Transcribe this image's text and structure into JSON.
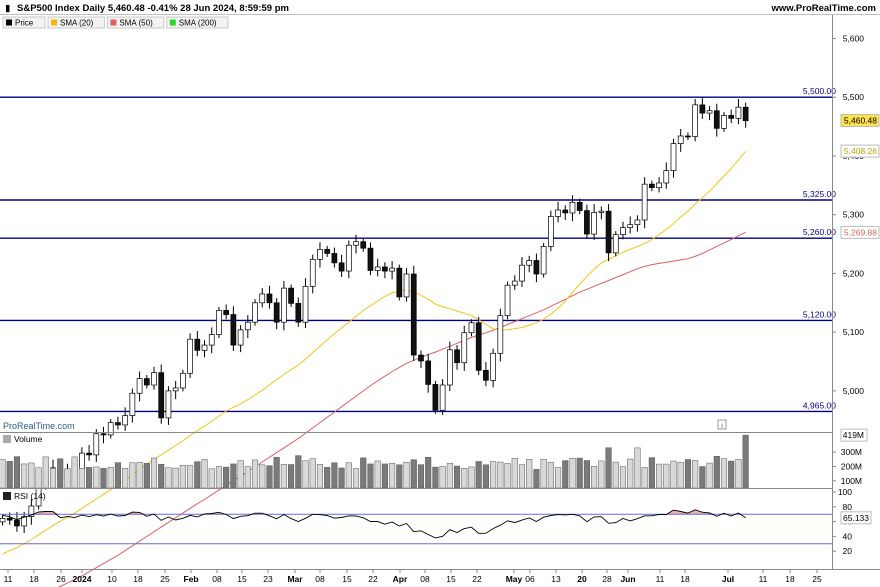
{
  "header": {
    "title": "S&P500 Index Daily 5,460.48 -0.41% 28 Jun 2024, 8:59:59 pm",
    "site": "www.ProRealTime.com"
  },
  "legend": [
    {
      "name": "Price",
      "color": "#000000"
    },
    {
      "name": "SMA (20)",
      "color": "#f5b800"
    },
    {
      "name": "SMA (50)",
      "color": "#e06060"
    },
    {
      "name": "SMA (200)",
      "color": "#2bd62b"
    }
  ],
  "watermark": "ProRealTime.com",
  "colors": {
    "hline": "#00008b",
    "sma20": "#f5c518",
    "sma50": "#e06060",
    "rsi_line": "#000000",
    "rsi_level": "#6a6ad8"
  },
  "chart_data": [
    {
      "type": "candlestick",
      "title": "S&P500 Index Daily",
      "y_ticks": [
        "5,000",
        "5,100",
        "5,200",
        "5,300",
        "5,400",
        "5,500",
        "5,600"
      ],
      "ylim": [
        4930,
        5640
      ],
      "last_price": "5,460.48",
      "sma20_label": "5,408.26",
      "sma50_label": "5,269.88",
      "horizontal_lines": [
        {
          "value": 5500,
          "label": "5,500.00"
        },
        {
          "value": 5325,
          "label": "5,325.00"
        },
        {
          "value": 5260,
          "label": "5,260.00"
        },
        {
          "value": 5120,
          "label": "5,120.00"
        },
        {
          "value": 4965,
          "label": "4,965.00"
        }
      ],
      "x_labels": [
        "11",
        "18",
        "26",
        "2024",
        "10",
        "18",
        "25",
        "Feb",
        "08",
        "15",
        "23",
        "Mar",
        "08",
        "15",
        "22",
        "Apr",
        "08",
        "15",
        "22",
        "May",
        "06",
        "13",
        "20",
        "28",
        "Jun",
        "11",
        "18",
        "Jul",
        "11",
        "18",
        "25"
      ],
      "closes": [
        4783,
        4780,
        4770,
        4786,
        4804,
        4840,
        4851,
        4869,
        4850,
        4864,
        4868,
        4894,
        4891,
        4927,
        4925,
        4946,
        4942,
        4958,
        4996,
        5021,
        5010,
        5031,
        4954,
        5000,
        5005,
        5030,
        5088,
        5069,
        5078,
        5096,
        5137,
        5130,
        5078,
        5104,
        5117,
        5150,
        5165,
        5150,
        5117,
        5175,
        5149,
        5117,
        5178,
        5224,
        5241,
        5234,
        5218,
        5204,
        5248,
        5254,
        5243,
        5205,
        5211,
        5204,
        5209,
        5160,
        5199,
        5061,
        5051,
        5011,
        4967,
        5010,
        5070,
        5048,
        5099,
        5116,
        5035,
        5018,
        5064,
        5128,
        5180,
        5187,
        5214,
        5222,
        5199,
        5246,
        5297,
        5308,
        5303,
        5321,
        5307,
        5267,
        5304,
        5306,
        5235,
        5266,
        5278,
        5283,
        5291,
        5352,
        5346,
        5354,
        5375,
        5421,
        5434,
        5433,
        5487,
        5473,
        5477,
        5447,
        5469,
        5464,
        5483,
        5460
      ],
      "sma20": [
        4722,
        4728,
        4733,
        4740,
        4747,
        4755,
        4763,
        4771,
        4778,
        4785,
        4792,
        4800,
        4808,
        4816,
        4824,
        4832,
        4840,
        4848,
        4857,
        4866,
        4875,
        4884,
        4891,
        4899,
        4907,
        4915,
        4924,
        4932,
        4940,
        4948,
        4957,
        4966,
        4972,
        4978,
        4985,
        4993,
        5001,
        5010,
        5019,
        5028,
        5036,
        5044,
        5054,
        5065,
        5076,
        5087,
        5097,
        5107,
        5117,
        5127,
        5137,
        5145,
        5153,
        5161,
        5167,
        5170,
        5172,
        5168,
        5163,
        5156,
        5148,
        5143,
        5140,
        5136,
        5132,
        5128,
        5121,
        5113,
        5106,
        5103,
        5104,
        5106,
        5108,
        5112,
        5116,
        5122,
        5130,
        5141,
        5153,
        5168,
        5182,
        5195,
        5207,
        5218,
        5224,
        5230,
        5236,
        5241,
        5246,
        5251,
        5258,
        5266,
        5275,
        5285,
        5296,
        5306,
        5318,
        5329,
        5340,
        5353,
        5366,
        5379,
        5393,
        5408
      ],
      "sma50": [
        4620,
        4626,
        4632,
        4637,
        4643,
        4649,
        4655,
        4661,
        4667,
        4673,
        4679,
        4685,
        4692,
        4699,
        4706,
        4713,
        4720,
        4728,
        4736,
        4744,
        4752,
        4760,
        4768,
        4776,
        4784,
        4792,
        4800,
        4808,
        4815,
        4823,
        4831,
        4839,
        4847,
        4855,
        4863,
        4871,
        4879,
        4887,
        4895,
        4903,
        4911,
        4919,
        4928,
        4937,
        4946,
        4955,
        4964,
        4973,
        4982,
        4991,
        5000,
        5009,
        5017,
        5025,
        5033,
        5040,
        5047,
        5052,
        5057,
        5062,
        5066,
        5071,
        5076,
        5081,
        5086,
        5091,
        5095,
        5099,
        5103,
        5108,
        5113,
        5118,
        5123,
        5128,
        5133,
        5138,
        5144,
        5150,
        5156,
        5162,
        5168,
        5173,
        5178,
        5183,
        5188,
        5193,
        5198,
        5203,
        5208,
        5212,
        5215,
        5217,
        5219,
        5221,
        5223,
        5225,
        5229,
        5234,
        5240,
        5246,
        5252,
        5258,
        5264,
        5270
      ]
    },
    {
      "type": "bar",
      "title": "Volume",
      "y_ticks": [
        "100M",
        "200M",
        "300M"
      ],
      "ylim": [
        50,
        420
      ],
      "last_label": "419M",
      "values": [
        248,
        236,
        269,
        218,
        225,
        191,
        267,
        187,
        254,
        184,
        267,
        188,
        194,
        197,
        187,
        195,
        227,
        188,
        226,
        228,
        222,
        259,
        216,
        192,
        189,
        209,
        207,
        234,
        249,
        184,
        200,
        196,
        218,
        241,
        199,
        246,
        212,
        206,
        265,
        216,
        214,
        276,
        241,
        254,
        215,
        194,
        226,
        190,
        226,
        186,
        260,
        218,
        239,
        218,
        222,
        212,
        230,
        247,
        213,
        265,
        196,
        201,
        223,
        203,
        188,
        197,
        235,
        212,
        235,
        231,
        221,
        258,
        213,
        250,
        180,
        251,
        230,
        193,
        241,
        258,
        259,
        242,
        202,
        239,
        331,
        231,
        199,
        252,
        330,
        193,
        262,
        217,
        217,
        238,
        229,
        249,
        242,
        200,
        224,
        271,
        255,
        238,
        250,
        419
      ]
    },
    {
      "type": "line",
      "title": "RSI (14)",
      "y_ticks": [
        "20",
        "40",
        "60",
        "80",
        "100"
      ],
      "ylim": [
        0,
        100
      ],
      "levels": [
        70,
        30
      ],
      "last_label": "65.133",
      "values": [
        68.6,
        66.5,
        62.6,
        65.9,
        68.8,
        73.0,
        73.7,
        73.5,
        65.3,
        66.8,
        65.4,
        68.8,
        66.8,
        69.3,
        67.5,
        70.1,
        67.5,
        68.3,
        72.8,
        72.4,
        67.2,
        70.3,
        61.6,
        66.2,
        62.2,
        64.4,
        68.4,
        66.3,
        70.3,
        71.0,
        72.6,
        69.6,
        64.1,
        67.2,
        68.0,
        71.4,
        71.4,
        67.8,
        63.8,
        69.6,
        64.0,
        60.2,
        64.5,
        69.8,
        69.3,
        68.3,
        64.6,
        65.5,
        67.9,
        67.5,
        65.1,
        60.1,
        60.2,
        56.5,
        59.4,
        54.0,
        57.5,
        46.4,
        47.6,
        42.5,
        38.0,
        40.1,
        49.0,
        45.3,
        50.5,
        52.4,
        44.0,
        44.3,
        50.5,
        55.1,
        61.1,
        58.7,
        62.0,
        64.8,
        60.1,
        66.0,
        68.3,
        69.4,
        69.1,
        69.8,
        67.9,
        59.8,
        66.3,
        66.6,
        57.7,
        58.7,
        64.2,
        60.9,
        63.9,
        67.8,
        67.8,
        69.7,
        69.6,
        75.5,
        73.6,
        71.5,
        76.0,
        72.7,
        71.6,
        67.2,
        71.3,
        67.5,
        71.6,
        65.1
      ]
    }
  ]
}
